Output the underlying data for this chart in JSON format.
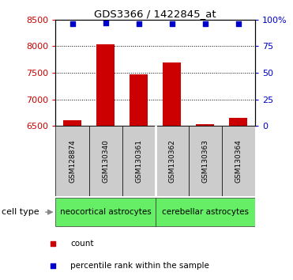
{
  "title": "GDS3366 / 1422845_at",
  "samples": [
    "GSM128874",
    "GSM130340",
    "GSM130361",
    "GSM130362",
    "GSM130363",
    "GSM130364"
  ],
  "bar_values": [
    6610,
    8040,
    7470,
    7700,
    6540,
    6660
  ],
  "percentile_values": [
    96,
    97,
    96,
    96,
    96,
    96
  ],
  "bar_color": "#cc0000",
  "percentile_color": "#0000cc",
  "ylim_left": [
    6500,
    8500
  ],
  "ylim_right": [
    0,
    100
  ],
  "yticks_left": [
    6500,
    7000,
    7500,
    8000,
    8500
  ],
  "yticks_right": [
    0,
    25,
    50,
    75,
    100
  ],
  "groups": [
    {
      "label": "neocortical astrocytes",
      "start": 0,
      "end": 3,
      "color": "#66ee66"
    },
    {
      "label": "cerebellar astrocytes",
      "start": 3,
      "end": 6,
      "color": "#66ee66"
    }
  ],
  "group_row_label": "cell type",
  "legend_count_label": "count",
  "legend_percentile_label": "percentile rank within the sample",
  "bar_width": 0.55,
  "sample_box_color": "#cccccc",
  "background_color": "#ffffff",
  "plot_bg_color": "#ffffff",
  "left_axis_color": "#cc0000",
  "right_axis_color": "#0000cc"
}
